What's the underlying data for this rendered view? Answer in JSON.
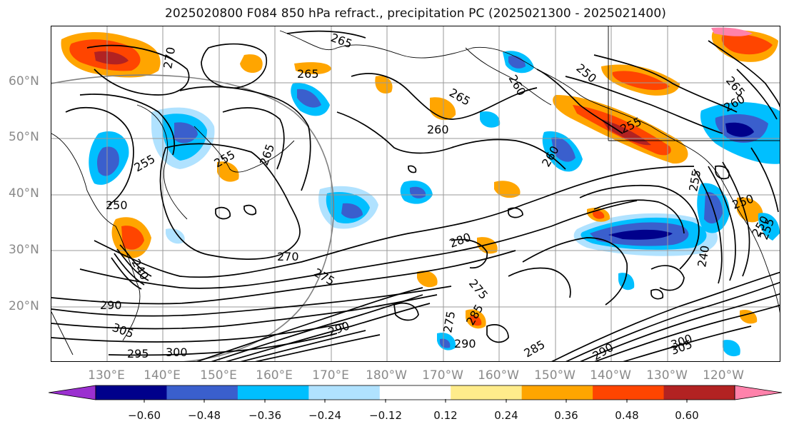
{
  "title": "2025020800 F084 850 hPa refract., precipitation PC (2025021300 - 2025021400)",
  "lat_labels": [
    "60°N",
    "50°N",
    "40°N",
    "30°N",
    "20°N"
  ],
  "lon_labels": [
    "130°E",
    "140°E",
    "150°E",
    "160°E",
    "170°E",
    "180°W",
    "170°W",
    "160°W",
    "150°W",
    "140°W",
    "130°W",
    "120°W"
  ],
  "contour_labels": [
    "265",
    "270",
    "265",
    "250",
    "265",
    "260",
    "255",
    "260",
    "265",
    "260",
    "255",
    "255",
    "250",
    "255",
    "265",
    "260",
    "250",
    "250",
    "255",
    "240",
    "270",
    "275",
    "280",
    "290",
    "305",
    "295",
    "300",
    "290",
    "275",
    "290",
    "285",
    "275",
    "285",
    "290",
    "300",
    "305",
    "240"
  ],
  "colorbar": {
    "ticks": [
      "−0.60",
      "−0.48",
      "−0.36",
      "−0.24",
      "−0.12",
      "0.12",
      "0.24",
      "0.36",
      "0.48",
      "0.60"
    ],
    "colors": [
      "#9b30d0",
      "#00008b",
      "#3a5fcd",
      "#00bfff",
      "#b0e2ff",
      "#ffffff",
      "#ffec8b",
      "#ffa500",
      "#ff4500",
      "#b22222",
      "#ff82ab"
    ]
  },
  "palette": {
    "contour": "#000000",
    "grid": "#8a8a8a",
    "coast": "#000000",
    "circle": "#808080"
  }
}
